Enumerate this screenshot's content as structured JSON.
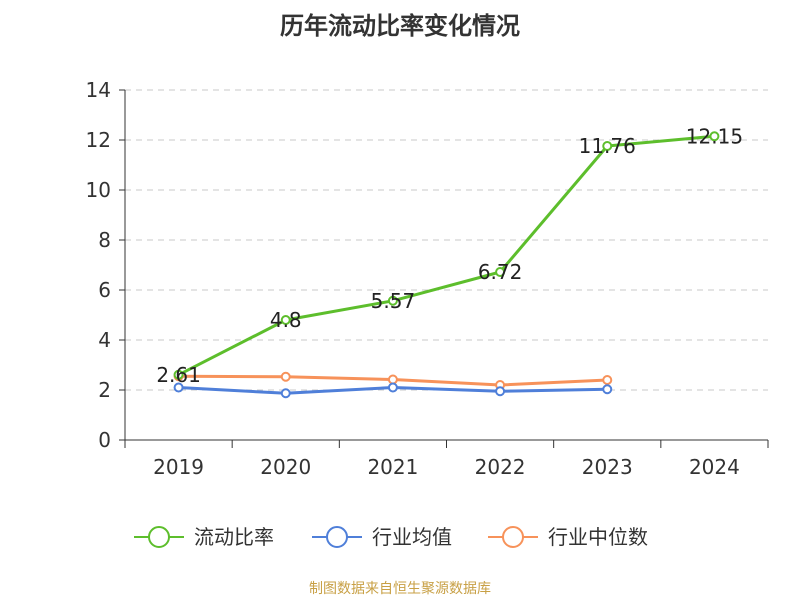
{
  "title": "历年流动比率变化情况",
  "source": "制图数据来自恒生聚源数据库",
  "chart_data": {
    "type": "line",
    "title": "历年流动比率变化情况",
    "xlabel": "",
    "ylabel": "",
    "categories": [
      "2019",
      "2020",
      "2021",
      "2022",
      "2023",
      "2024"
    ],
    "ylim": [
      0,
      14
    ],
    "yticks": [
      0,
      2,
      4,
      6,
      8,
      10,
      12,
      14
    ],
    "grid": true,
    "legend_position": "bottom",
    "series": [
      {
        "name": "流动比率",
        "color": "#5dbe2c",
        "values": [
          2.61,
          4.8,
          5.57,
          6.72,
          11.76,
          12.15
        ],
        "labels": [
          "2.61",
          "4.8",
          "5.57",
          "6.72",
          "11.76",
          "12.15"
        ]
      },
      {
        "name": "行业均值",
        "color": "#4f7fd9",
        "values": [
          2.1,
          1.87,
          2.1,
          1.95,
          2.03,
          null
        ]
      },
      {
        "name": "行业中位数",
        "color": "#f7925a",
        "values": [
          2.55,
          2.53,
          2.42,
          2.2,
          2.4,
          null
        ]
      }
    ]
  }
}
